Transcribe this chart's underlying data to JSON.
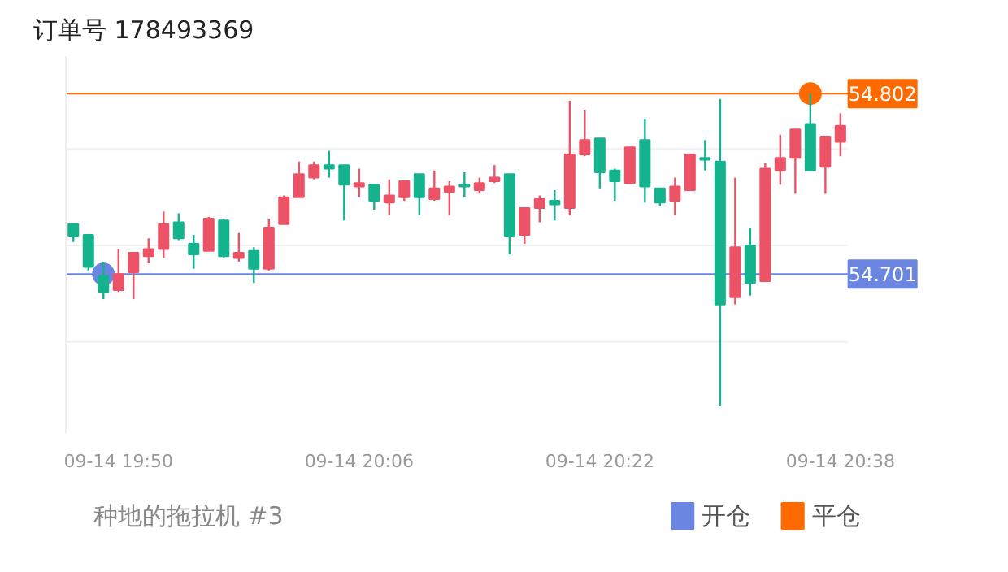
{
  "chart_data": {
    "type": "candlestick",
    "title": "订单号 178493369",
    "annotations": [
      "种地的拖拉机 #3"
    ],
    "categories": [
      null,
      null,
      null,
      "09-14 19:50",
      null,
      null,
      null,
      null,
      null,
      null,
      null,
      null,
      null,
      null,
      null,
      null,
      null,
      null,
      null,
      "09-14 20:06",
      null,
      null,
      null,
      null,
      null,
      null,
      null,
      null,
      null,
      null,
      null,
      null,
      null,
      null,
      null,
      "09-14 20:22",
      null,
      null,
      null,
      null,
      null,
      null,
      null,
      null,
      null,
      null,
      null,
      null,
      null,
      null,
      null,
      "09-14 20:38"
    ],
    "ohlc": [
      [
        54.729,
        54.729,
        54.719,
        54.722
      ],
      [
        54.723,
        54.723,
        54.703,
        54.705
      ],
      [
        54.7,
        54.708,
        54.687,
        54.691
      ],
      [
        54.692,
        54.715,
        54.691,
        54.701
      ],
      [
        54.702,
        54.713,
        54.687,
        54.713
      ],
      [
        54.711,
        54.721,
        54.707,
        54.715
      ],
      [
        54.715,
        54.736,
        54.71,
        54.729
      ],
      [
        54.73,
        54.735,
        54.72,
        54.721
      ],
      [
        54.718,
        54.723,
        54.704,
        54.712
      ],
      [
        54.714,
        54.733,
        54.714,
        54.732
      ],
      [
        54.731,
        54.732,
        54.71,
        54.711
      ],
      [
        54.71,
        54.724,
        54.708,
        54.713
      ],
      [
        54.714,
        54.716,
        54.696,
        54.704
      ],
      [
        54.704,
        54.732,
        54.703,
        54.727
      ],
      [
        54.729,
        54.745,
        54.729,
        54.744
      ],
      [
        54.744,
        54.764,
        54.744,
        54.757
      ],
      [
        54.755,
        54.764,
        54.754,
        54.762
      ],
      [
        54.762,
        54.77,
        54.755,
        54.76
      ],
      [
        54.762,
        54.762,
        54.731,
        54.751
      ],
      [
        54.75,
        54.76,
        54.744,
        54.752
      ],
      [
        54.751,
        54.751,
        54.737,
        54.742
      ],
      [
        54.741,
        54.754,
        54.734,
        54.745
      ],
      [
        54.744,
        54.753,
        54.742,
        54.753
      ],
      [
        54.757,
        54.757,
        54.734,
        54.744
      ],
      [
        54.743,
        54.759,
        54.742,
        54.749
      ],
      [
        54.747,
        54.753,
        54.734,
        54.75
      ],
      [
        54.751,
        54.758,
        54.744,
        54.75
      ],
      [
        54.748,
        54.755,
        54.746,
        54.752
      ],
      [
        54.753,
        54.762,
        54.752,
        54.755
      ],
      [
        54.757,
        54.757,
        54.712,
        54.722
      ],
      [
        54.723,
        54.738,
        54.718,
        54.738
      ],
      [
        54.738,
        54.745,
        54.73,
        54.743
      ],
      [
        54.742,
        54.748,
        54.731,
        54.74
      ],
      [
        54.738,
        54.798,
        54.734,
        54.768
      ],
      [
        54.768,
        54.793,
        54.767,
        54.776
      ],
      [
        54.777,
        54.777,
        54.749,
        54.758
      ],
      [
        54.759,
        54.76,
        54.742,
        54.753
      ],
      [
        54.752,
        54.772,
        54.752,
        54.772
      ],
      [
        54.776,
        54.788,
        54.741,
        54.75
      ],
      [
        54.749,
        54.749,
        54.739,
        54.741
      ],
      [
        54.742,
        54.755,
        54.734,
        54.75
      ],
      [
        54.748,
        54.768,
        54.748,
        54.768
      ],
      [
        54.766,
        54.776,
        54.759,
        54.765
      ],
      [
        54.764,
        54.799,
        54.627,
        54.684
      ],
      [
        54.688,
        54.755,
        54.684,
        54.716
      ],
      [
        54.717,
        54.727,
        54.689,
        54.696
      ],
      [
        54.697,
        54.763,
        54.697,
        54.76
      ],
      [
        54.759,
        54.779,
        54.751,
        54.766
      ],
      [
        54.766,
        54.782,
        54.746,
        54.782
      ],
      [
        54.785,
        54.802,
        54.759,
        54.759
      ],
      [
        54.761,
        54.778,
        54.746,
        54.778
      ],
      [
        54.775,
        54.791,
        54.767,
        54.784
      ]
    ],
    "colors": [
      "#14b38e",
      "#14b38e",
      "#14b38e",
      "#ec5366",
      "#ec5366",
      "#ec5366",
      "#ec5366",
      "#14b38e",
      "#14b38e",
      "#ec5366",
      "#14b38e",
      "#ec5366",
      "#14b38e",
      "#ec5366",
      "#ec5366",
      "#ec5366",
      "#ec5366",
      "#14b38e",
      "#14b38e",
      "#ec5366",
      "#14b38e",
      "#ec5366",
      "#ec5366",
      "#14b38e",
      "#ec5366",
      "#ec5366",
      "#14b38e",
      "#ec5366",
      "#ec5366",
      "#14b38e",
      "#ec5366",
      "#ec5366",
      "#14b38e",
      "#ec5366",
      "#ec5366",
      "#14b38e",
      "#14b38e",
      "#ec5366",
      "#14b38e",
      "#14b38e",
      "#ec5366",
      "#ec5366",
      "#14b38e",
      "#14b38e",
      "#ec5366",
      "#14b38e",
      "#ec5366",
      "#ec5366",
      "#ec5366",
      "#14b38e",
      "#ec5366",
      "#ec5366"
    ],
    "series": [
      {
        "name": "开仓",
        "type": "scatter",
        "color": "#6a86e0",
        "values": [
          null,
          null,
          54.701,
          null,
          null,
          null,
          null,
          null,
          null,
          null,
          null,
          null,
          null,
          null,
          null,
          null,
          null,
          null,
          null,
          null,
          null,
          null,
          null,
          null,
          null,
          null,
          null,
          null,
          null,
          null,
          null,
          null,
          null,
          null,
          null,
          null,
          null,
          null,
          null,
          null,
          null,
          null,
          null,
          null,
          null,
          null,
          null,
          null,
          null,
          null,
          null,
          null
        ]
      },
      {
        "name": "平仓",
        "type": "scatter",
        "color": "#ff6a00",
        "values": [
          null,
          null,
          null,
          null,
          null,
          null,
          null,
          null,
          null,
          null,
          null,
          null,
          null,
          null,
          null,
          null,
          null,
          null,
          null,
          null,
          null,
          null,
          null,
          null,
          null,
          null,
          null,
          null,
          null,
          null,
          null,
          null,
          null,
          null,
          null,
          null,
          null,
          null,
          null,
          null,
          null,
          null,
          null,
          null,
          null,
          null,
          null,
          null,
          null,
          54.802,
          null,
          null
        ]
      }
    ],
    "marker": "circle",
    "yticks": [
      {
        "value": 54.663,
        "label": null
      },
      54.701,
      {
        "value": 54.717,
        "label": null
      },
      {
        "value": 54.771,
        "label": null
      },
      54.802
    ],
    "ylim": [
      54.612,
      54.823
    ],
    "grid": "y",
    "ref_lines": [
      {
        "axis": "y",
        "value": 54.802,
        "color": "#ff6a00"
      },
      {
        "axis": "y",
        "value": 54.701,
        "color": "#6a86e0"
      }
    ],
    "legend": "bottom right"
  }
}
